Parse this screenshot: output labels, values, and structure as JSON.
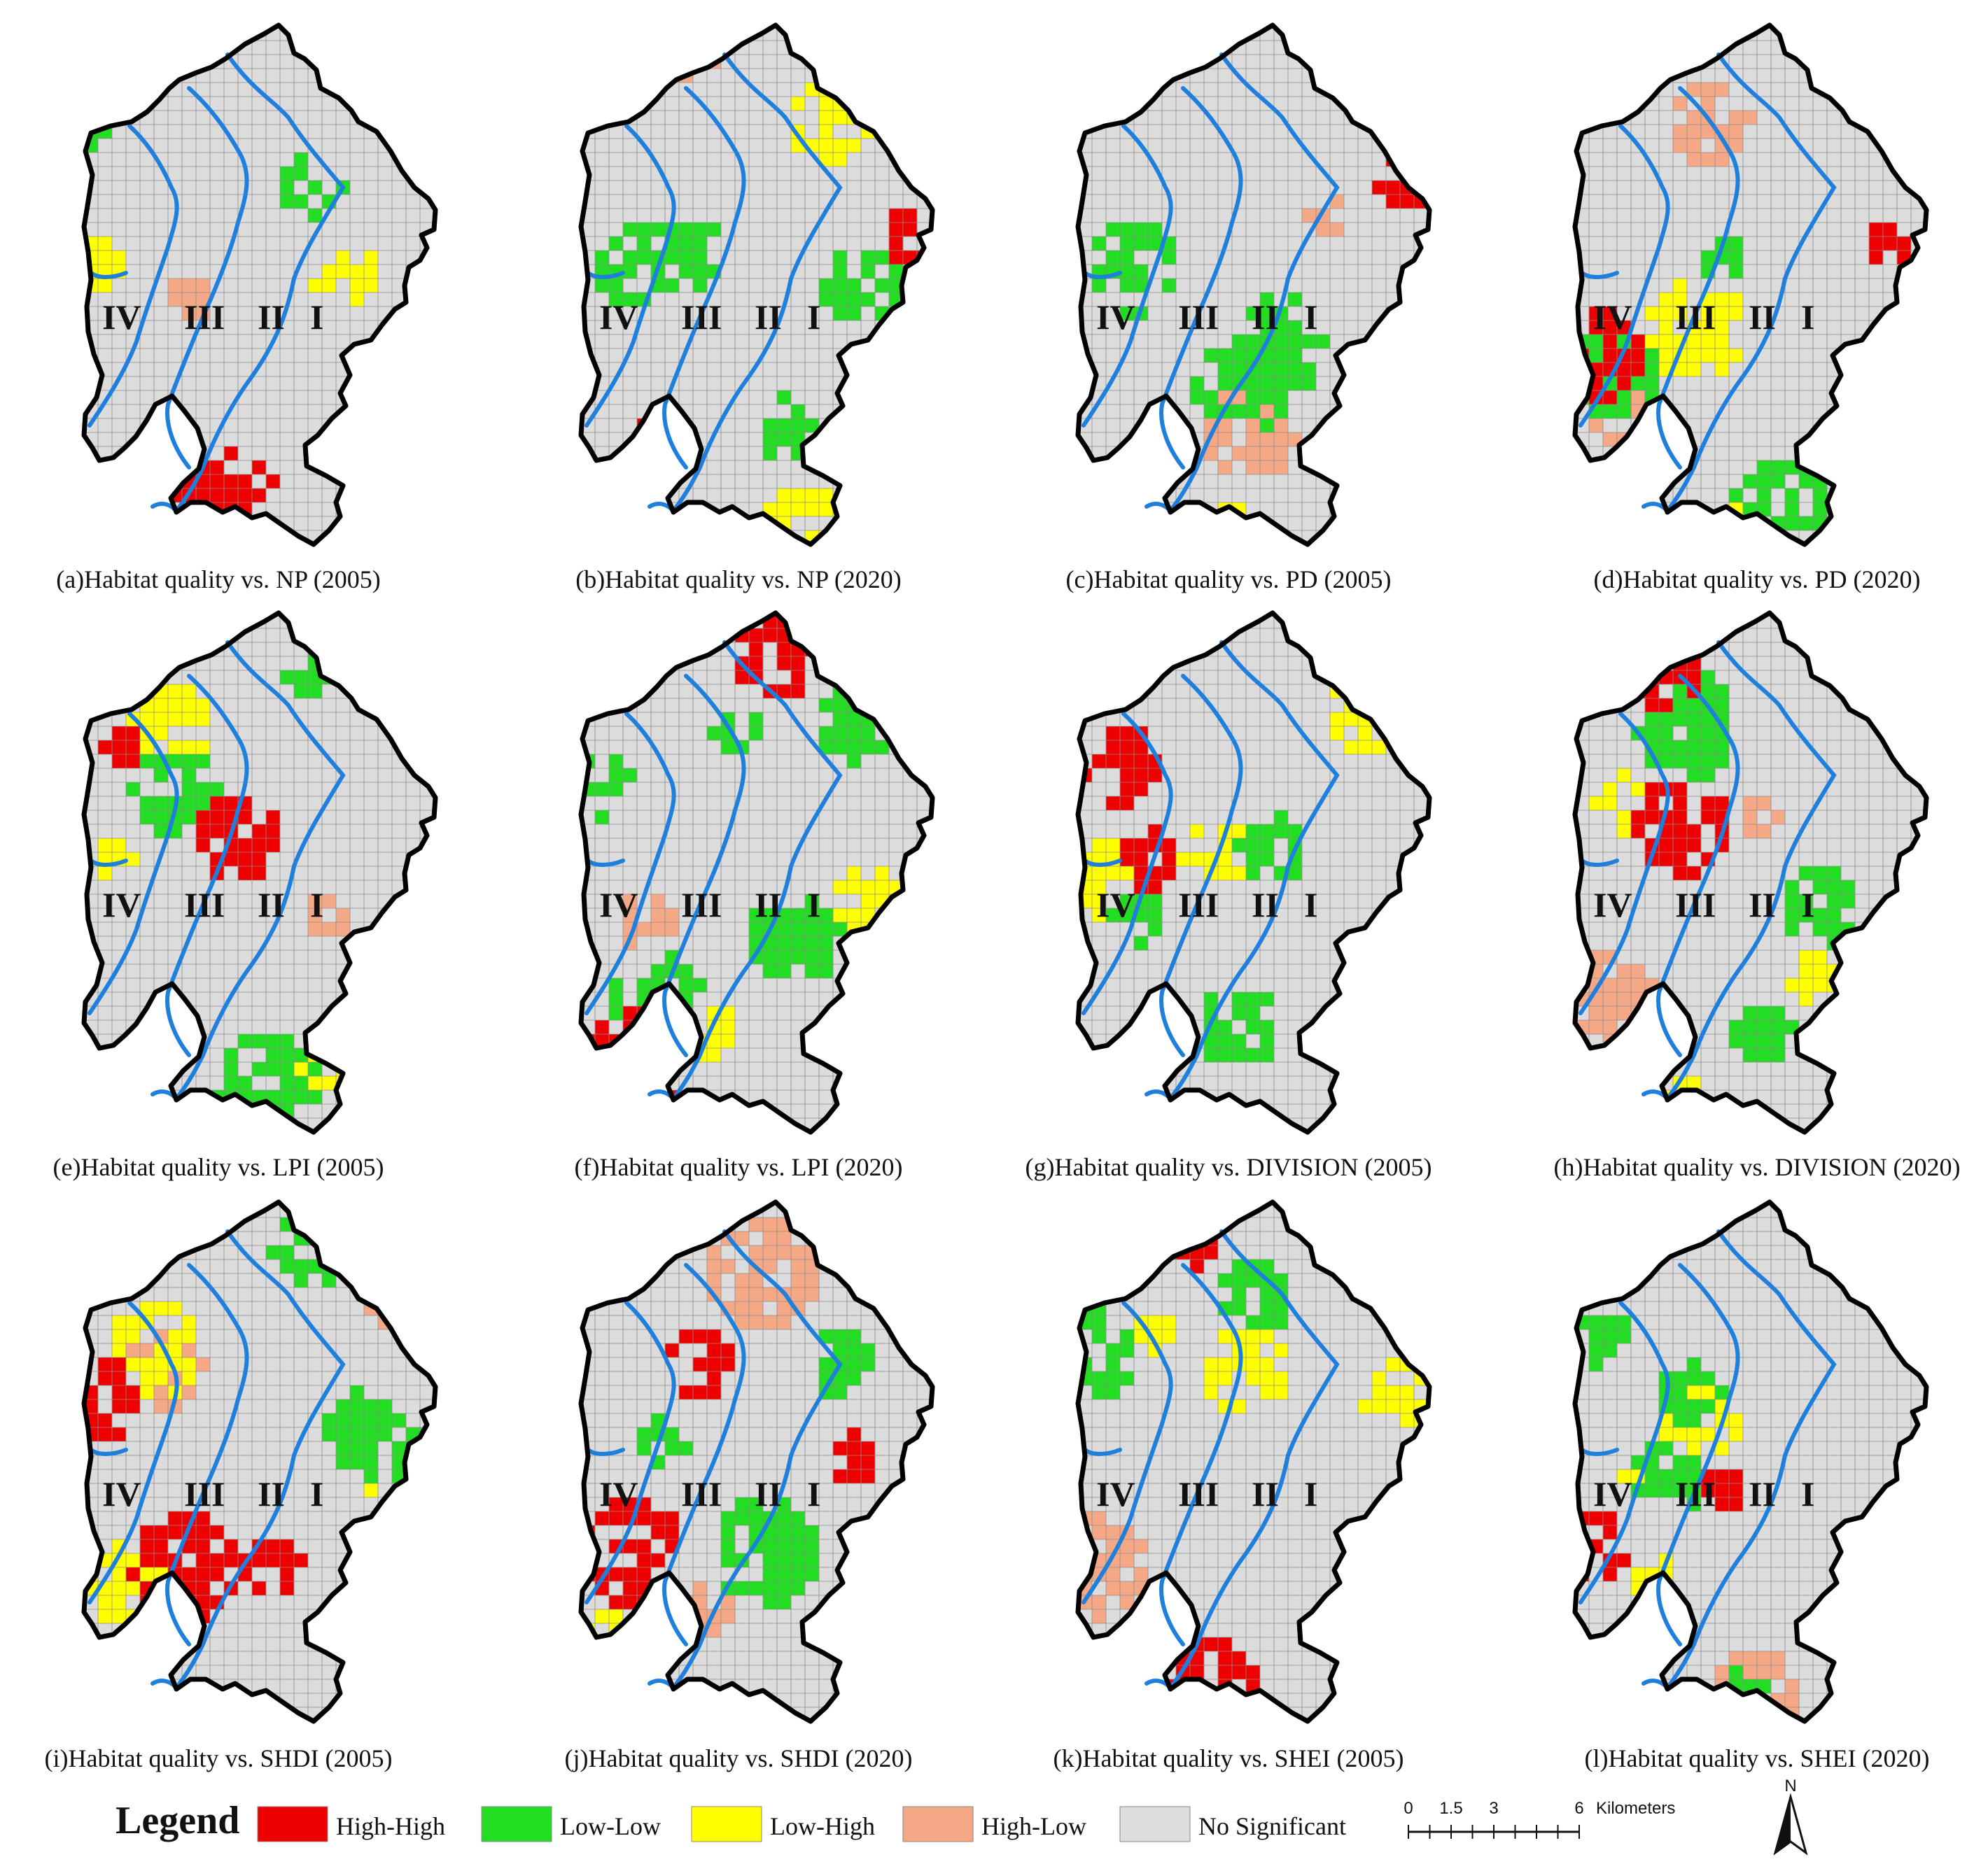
{
  "colors": {
    "High-High": "#ee0000",
    "Low-Low": "#22dd22",
    "Low-High": "#ffff00",
    "High-Low": "#f5a886",
    "No Significant": "#dcdcdc",
    "boundary": "#000000",
    "river": "#1f7fdc",
    "grid": "#8c8c8c"
  },
  "zone_labels": [
    "IV",
    "III",
    "II",
    "I"
  ],
  "panels": [
    {
      "id": "a",
      "caption": "(a)Habitat quality vs. NP (2005)",
      "hh": 0.07,
      "ll": 0.07,
      "lh": 0.05,
      "hl": 0.03
    },
    {
      "id": "b",
      "caption": "(b)Habitat quality vs. NP (2020)",
      "hh": 0.06,
      "ll": 0.13,
      "lh": 0.06,
      "hl": 0.02
    },
    {
      "id": "c",
      "caption": "(c)Habitat quality vs. PD (2005)",
      "hh": 0.03,
      "ll": 0.11,
      "lh": 0.02,
      "hl": 0.03
    },
    {
      "id": "d",
      "caption": "(d)Habitat quality vs. PD (2020)",
      "hh": 0.02,
      "ll": 0.1,
      "lh": 0.04,
      "hl": 0.02
    },
    {
      "id": "e",
      "caption": "(e)Habitat quality vs. LPI (2005)",
      "hh": 0.04,
      "ll": 0.09,
      "lh": 0.09,
      "hl": 0.04
    },
    {
      "id": "f",
      "caption": "(f)Habitat quality vs. LPI (2020)",
      "hh": 0.02,
      "ll": 0.12,
      "lh": 0.08,
      "hl": 0.03
    },
    {
      "id": "g",
      "caption": "(g)Habitat quality vs. DIVISION (2005)",
      "hh": 0.08,
      "ll": 0.09,
      "lh": 0.08,
      "hl": 0.02
    },
    {
      "id": "h",
      "caption": "(h)Habitat quality vs. DIVISION (2020)",
      "hh": 0.07,
      "ll": 0.09,
      "lh": 0.08,
      "hl": 0.02
    },
    {
      "id": "i",
      "caption": "(i)Habitat quality vs. SHDI (2005)",
      "hh": 0.08,
      "ll": 0.08,
      "lh": 0.08,
      "hl": 0.03
    },
    {
      "id": "j",
      "caption": "(j)Habitat quality vs. SHDI (2020)",
      "hh": 0.07,
      "ll": 0.12,
      "lh": 0.07,
      "hl": 0.02
    },
    {
      "id": "k",
      "caption": "(k)Habitat quality vs. SHEI (2005)",
      "hh": 0.07,
      "ll": 0.08,
      "lh": 0.08,
      "hl": 0.03
    },
    {
      "id": "l",
      "caption": "(l)Habitat quality vs. SHEI (2020)",
      "hh": 0.06,
      "ll": 0.09,
      "lh": 0.08,
      "hl": 0.02
    }
  ],
  "legend": {
    "title": "Legend",
    "items": [
      "High-High",
      "Low-Low",
      "Low-High",
      "High-Low",
      "No Significant"
    ]
  },
  "scale_bar": {
    "ticks": [
      "0",
      "1.5",
      "3",
      "6"
    ],
    "unit": "Kilometers"
  },
  "north_label": "N"
}
